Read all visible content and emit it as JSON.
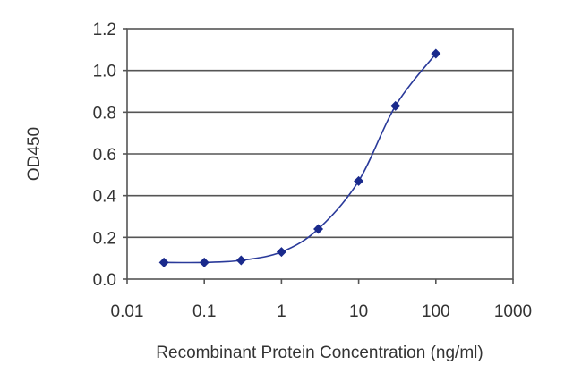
{
  "chart_data": {
    "type": "scatter",
    "title": "",
    "xlabel": "Recombinant Protein Concentration (ng/ml)",
    "ylabel": "OD450",
    "x_scale": "log",
    "xlim": [
      0.01,
      1000
    ],
    "ylim": [
      0,
      1.2
    ],
    "x_ticks": [
      "0.01",
      "0.1",
      "1",
      "10",
      "100",
      "1000"
    ],
    "y_ticks": [
      "0.0",
      "0.2",
      "0.4",
      "0.6",
      "0.8",
      "1.0",
      "1.2"
    ],
    "grid": "horizontal",
    "legend": "none",
    "series": [
      {
        "x": [
          0.03,
          0.1,
          0.3,
          1,
          3,
          10,
          30,
          100
        ],
        "y": [
          0.08,
          0.08,
          0.09,
          0.13,
          0.24,
          0.47,
          0.83,
          1.08
        ],
        "color": "#1a2a8c",
        "marker": "diamond",
        "fit_curve": true
      }
    ]
  }
}
